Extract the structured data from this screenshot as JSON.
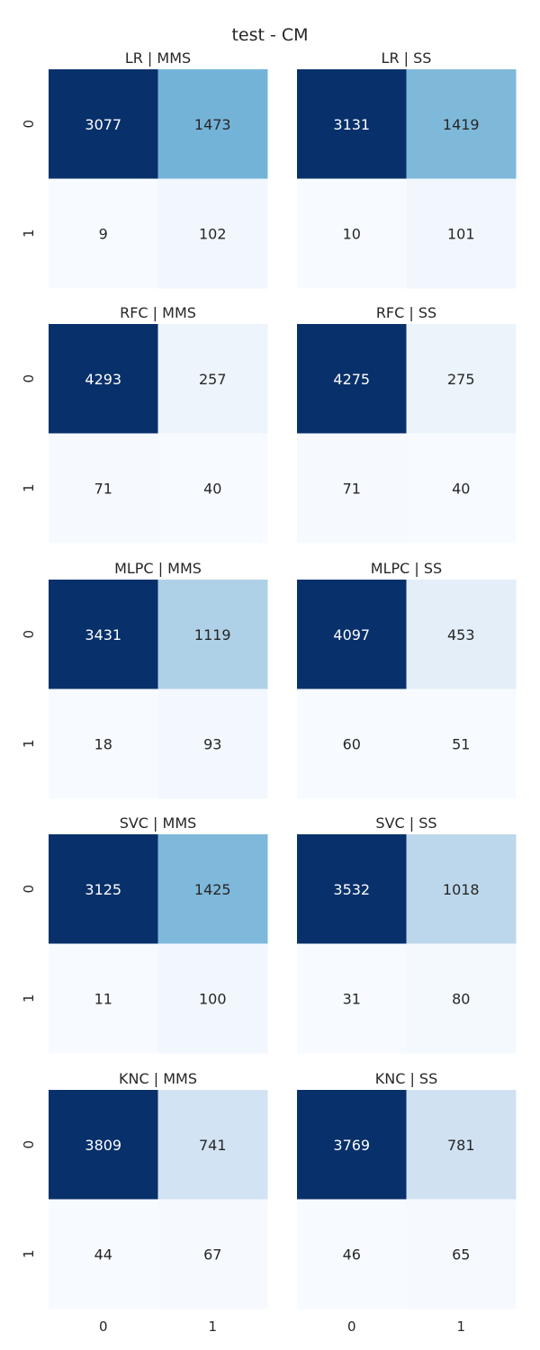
{
  "figure": {
    "title": "test - CM"
  },
  "chart_data": [
    {
      "type": "heatmap",
      "title": "LR | MMS",
      "x_categories": [
        "0",
        "1"
      ],
      "y_categories": [
        "0",
        "1"
      ],
      "values": [
        [
          3077,
          1473
        ],
        [
          9,
          102
        ]
      ],
      "grid": false
    },
    {
      "type": "heatmap",
      "title": "LR | SS",
      "x_categories": [
        "0",
        "1"
      ],
      "y_categories": [
        "0",
        "1"
      ],
      "values": [
        [
          3131,
          1419
        ],
        [
          10,
          101
        ]
      ],
      "grid": false
    },
    {
      "type": "heatmap",
      "title": "RFC | MMS",
      "x_categories": [
        "0",
        "1"
      ],
      "y_categories": [
        "0",
        "1"
      ],
      "values": [
        [
          4293,
          257
        ],
        [
          71,
          40
        ]
      ],
      "grid": false
    },
    {
      "type": "heatmap",
      "title": "RFC | SS",
      "x_categories": [
        "0",
        "1"
      ],
      "y_categories": [
        "0",
        "1"
      ],
      "values": [
        [
          4275,
          275
        ],
        [
          71,
          40
        ]
      ],
      "grid": false
    },
    {
      "type": "heatmap",
      "title": "MLPC | MMS",
      "x_categories": [
        "0",
        "1"
      ],
      "y_categories": [
        "0",
        "1"
      ],
      "values": [
        [
          3431,
          1119
        ],
        [
          18,
          93
        ]
      ],
      "grid": false
    },
    {
      "type": "heatmap",
      "title": "MLPC | SS",
      "x_categories": [
        "0",
        "1"
      ],
      "y_categories": [
        "0",
        "1"
      ],
      "values": [
        [
          4097,
          453
        ],
        [
          60,
          51
        ]
      ],
      "grid": false
    },
    {
      "type": "heatmap",
      "title": "SVC | MMS",
      "x_categories": [
        "0",
        "1"
      ],
      "y_categories": [
        "0",
        "1"
      ],
      "values": [
        [
          3125,
          1425
        ],
        [
          11,
          100
        ]
      ],
      "grid": false
    },
    {
      "type": "heatmap",
      "title": "SVC | SS",
      "x_categories": [
        "0",
        "1"
      ],
      "y_categories": [
        "0",
        "1"
      ],
      "values": [
        [
          3532,
          1018
        ],
        [
          31,
          80
        ]
      ],
      "grid": false
    },
    {
      "type": "heatmap",
      "title": "KNC | MMS",
      "x_categories": [
        "0",
        "1"
      ],
      "y_categories": [
        "0",
        "1"
      ],
      "values": [
        [
          3809,
          741
        ],
        [
          44,
          67
        ]
      ],
      "grid": false
    },
    {
      "type": "heatmap",
      "title": "KNC | SS",
      "x_categories": [
        "0",
        "1"
      ],
      "y_categories": [
        "0",
        "1"
      ],
      "values": [
        [
          3769,
          781
        ],
        [
          46,
          65
        ]
      ],
      "grid": false
    }
  ],
  "colormap": {
    "name": "Blues",
    "stops": [
      "#f7fbff",
      "#deebf7",
      "#c6dbef",
      "#9ecae1",
      "#6baed6",
      "#4292c6",
      "#2171b5",
      "#08519c",
      "#08306b"
    ],
    "dark_text": "#262626",
    "light_text": "#ffffff"
  }
}
